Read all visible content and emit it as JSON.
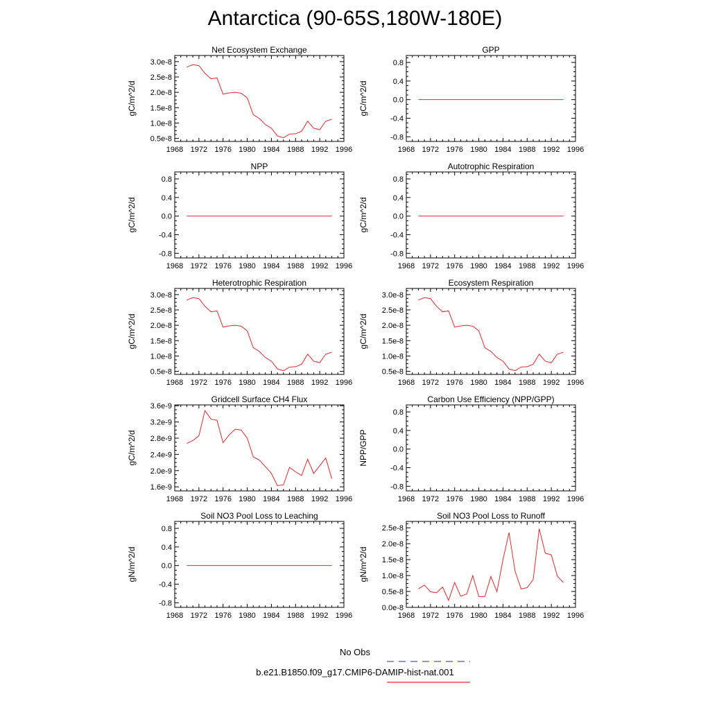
{
  "page": {
    "title": "Antarctica (90-65S,180W-180E)",
    "line_color": "#e8262a",
    "obs_color": "#5050d0"
  },
  "legend": {
    "obs_label": "No Obs",
    "run_label": "b.e21.B1850.f09_g17.CMIP6-DAMIP-hist-nat.001"
  },
  "chart_data": [
    {
      "type": "line",
      "title": "Net Ecosystem Exchange",
      "ylabel": "gC/m^2/d",
      "xlim": [
        1968,
        1996
      ],
      "ylim": [
        4e-09,
        3.2e-08
      ],
      "yticks": [
        5e-09,
        1e-08,
        1.5e-08,
        2e-08,
        2.5e-08,
        3e-08
      ],
      "yticklabels": [
        "0.5e-8",
        "1.0e-8",
        "1.5e-8",
        "2.0e-8",
        "2.5e-8",
        "3.0e-8"
      ],
      "series": [
        {
          "x": [
            1970,
            1971,
            1972,
            1973,
            1974,
            1975,
            1976,
            1977,
            1978,
            1979,
            1980,
            1981,
            1982,
            1983,
            1984,
            1985,
            1986,
            1987,
            1988,
            1989,
            1990,
            1991,
            1992,
            1993,
            1994
          ],
          "values": [
            2.82e-08,
            2.9e-08,
            2.87e-08,
            2.62e-08,
            2.44e-08,
            2.47e-08,
            1.94e-08,
            1.98e-08,
            2e-08,
            1.97e-08,
            1.82e-08,
            1.27e-08,
            1.15e-08,
            9.5e-09,
            8.3e-09,
            5.8e-09,
            5.2e-09,
            6.4e-09,
            6.5e-09,
            7.3e-09,
            1.06e-08,
            8.3e-09,
            7.8e-09,
            1.06e-08,
            1.12e-08
          ]
        }
      ]
    },
    {
      "type": "line",
      "title": "GPP",
      "ylabel": "gC/m^2/d",
      "xlim": [
        1968,
        1996
      ],
      "ylim": [
        -0.9,
        0.95
      ],
      "yticks": [
        -0.8,
        -0.4,
        0.0,
        0.4,
        0.8
      ],
      "yticklabels": [
        "-0.8",
        "-0.4",
        "0.0",
        "0.4",
        "0.8"
      ],
      "series": [
        {
          "x": [
            1970,
            1994
          ],
          "values": [
            0,
            0
          ]
        }
      ]
    },
    {
      "type": "line",
      "title": "NPP",
      "ylabel": "gC/m^2/d",
      "xlim": [
        1968,
        1996
      ],
      "ylim": [
        -0.9,
        0.95
      ],
      "yticks": [
        -0.8,
        -0.4,
        0.0,
        0.4,
        0.8
      ],
      "yticklabels": [
        "-0.8",
        "-0.4",
        "0.0",
        "0.4",
        "0.8"
      ],
      "series": [
        {
          "x": [
            1970,
            1994
          ],
          "values": [
            0,
            0
          ]
        }
      ]
    },
    {
      "type": "line",
      "title": "Autotrophic Respiration",
      "ylabel": "gC/m^2/d",
      "xlim": [
        1968,
        1996
      ],
      "ylim": [
        -0.9,
        0.95
      ],
      "yticks": [
        -0.8,
        -0.4,
        0.0,
        0.4,
        0.8
      ],
      "yticklabels": [
        "-0.8",
        "-0.4",
        "0.0",
        "0.4",
        "0.8"
      ],
      "series": [
        {
          "x": [
            1970,
            1994
          ],
          "values": [
            0,
            0
          ]
        }
      ]
    },
    {
      "type": "line",
      "title": "Heterotrophic Respiration",
      "ylabel": "gC/m^2/d",
      "xlim": [
        1968,
        1996
      ],
      "ylim": [
        4e-09,
        3.2e-08
      ],
      "yticks": [
        5e-09,
        1e-08,
        1.5e-08,
        2e-08,
        2.5e-08,
        3e-08
      ],
      "yticklabels": [
        "0.5e-8",
        "1.0e-8",
        "1.5e-8",
        "2.0e-8",
        "2.5e-8",
        "3.0e-8"
      ],
      "series": [
        {
          "x": [
            1970,
            1971,
            1972,
            1973,
            1974,
            1975,
            1976,
            1977,
            1978,
            1979,
            1980,
            1981,
            1982,
            1983,
            1984,
            1985,
            1986,
            1987,
            1988,
            1989,
            1990,
            1991,
            1992,
            1993,
            1994
          ],
          "values": [
            2.82e-08,
            2.9e-08,
            2.87e-08,
            2.62e-08,
            2.44e-08,
            2.47e-08,
            1.94e-08,
            1.98e-08,
            2e-08,
            1.97e-08,
            1.82e-08,
            1.27e-08,
            1.15e-08,
            9.5e-09,
            8.3e-09,
            5.8e-09,
            5.2e-09,
            6.4e-09,
            6.5e-09,
            7.3e-09,
            1.06e-08,
            8.3e-09,
            7.8e-09,
            1.06e-08,
            1.12e-08
          ]
        }
      ]
    },
    {
      "type": "line",
      "title": "Ecosystem Respiration",
      "ylabel": "gC/m^2/d",
      "xlim": [
        1968,
        1996
      ],
      "ylim": [
        4e-09,
        3.2e-08
      ],
      "yticks": [
        5e-09,
        1e-08,
        1.5e-08,
        2e-08,
        2.5e-08,
        3e-08
      ],
      "yticklabels": [
        "0.5e-8",
        "1.0e-8",
        "1.5e-8",
        "2.0e-8",
        "2.5e-8",
        "3.0e-8"
      ],
      "series": [
        {
          "x": [
            1970,
            1971,
            1972,
            1973,
            1974,
            1975,
            1976,
            1977,
            1978,
            1979,
            1980,
            1981,
            1982,
            1983,
            1984,
            1985,
            1986,
            1987,
            1988,
            1989,
            1990,
            1991,
            1992,
            1993,
            1994
          ],
          "values": [
            2.82e-08,
            2.9e-08,
            2.87e-08,
            2.62e-08,
            2.44e-08,
            2.47e-08,
            1.94e-08,
            1.98e-08,
            2e-08,
            1.97e-08,
            1.82e-08,
            1.27e-08,
            1.15e-08,
            9.5e-09,
            8.3e-09,
            5.8e-09,
            5.2e-09,
            6.4e-09,
            6.5e-09,
            7.3e-09,
            1.06e-08,
            8.3e-09,
            7.8e-09,
            1.06e-08,
            1.12e-08
          ]
        }
      ]
    },
    {
      "type": "line",
      "title": "Gridcell Surface CH4 Flux",
      "ylabel": "gC/m^2/d",
      "xlim": [
        1968,
        1996
      ],
      "ylim": [
        1.5e-09,
        3.62e-09
      ],
      "yticks": [
        1.6e-09,
        2e-09,
        2.4e-09,
        2.8e-09,
        3.2e-09,
        3.6e-09
      ],
      "yticklabels": [
        "1.6e-9",
        "2.0e-9",
        "2.4e-9",
        "2.8e-9",
        "3.2e-9",
        "3.6e-9"
      ],
      "series": [
        {
          "x": [
            1970,
            1971,
            1972,
            1973,
            1974,
            1975,
            1976,
            1977,
            1978,
            1979,
            1980,
            1981,
            1982,
            1983,
            1984,
            1985,
            1986,
            1987,
            1988,
            1989,
            1990,
            1991,
            1992,
            1993,
            1994
          ],
          "values": [
            2.67e-09,
            2.74e-09,
            2.86e-09,
            3.48e-09,
            3.27e-09,
            3.24e-09,
            2.69e-09,
            2.88e-09,
            3.02e-09,
            3e-09,
            2.8e-09,
            2.34e-09,
            2.26e-09,
            2.1e-09,
            1.93e-09,
            1.63e-09,
            1.65e-09,
            2.08e-09,
            1.97e-09,
            1.88e-09,
            2.28e-09,
            1.93e-09,
            2.12e-09,
            2.31e-09,
            1.8e-09
          ]
        }
      ]
    },
    {
      "type": "line",
      "title": "Carbon Use Efficiency (NPP/GPP)",
      "ylabel": "NPP/GPP",
      "xlim": [
        1968,
        1996
      ],
      "ylim": [
        -0.9,
        0.95
      ],
      "yticks": [
        -0.8,
        -0.4,
        0.0,
        0.4,
        0.8
      ],
      "yticklabels": [
        "-0.8",
        "-0.4",
        "0.0",
        "0.4",
        "0.8"
      ],
      "series": []
    },
    {
      "type": "line",
      "title": "Soil NO3 Pool Loss to Leaching",
      "ylabel": "gN/m^2/d",
      "xlim": [
        1968,
        1996
      ],
      "ylim": [
        -0.9,
        0.95
      ],
      "yticks": [
        -0.8,
        -0.4,
        0.0,
        0.4,
        0.8
      ],
      "yticklabels": [
        "-0.8",
        "-0.4",
        "0.0",
        "0.4",
        "0.8"
      ],
      "series": [
        {
          "x": [
            1970,
            1994
          ],
          "values": [
            0,
            0
          ]
        }
      ]
    },
    {
      "type": "line",
      "title": "Soil NO3 Pool Loss to Runoff",
      "ylabel": "gN/m^2/d",
      "xlim": [
        1968,
        1996
      ],
      "ylim": [
        0,
        2.7e-08
      ],
      "yticks": [
        0.0,
        5e-09,
        1e-08,
        1.5e-08,
        2e-08,
        2.5e-08
      ],
      "yticklabels": [
        "0.0e-8",
        "0.5e-8",
        "1.0e-8",
        "1.5e-8",
        "2.0e-8",
        "2.5e-8"
      ],
      "series": [
        {
          "x": [
            1970,
            1971,
            1972,
            1973,
            1974,
            1975,
            1976,
            1977,
            1978,
            1979,
            1980,
            1981,
            1982,
            1983,
            1984,
            1985,
            1986,
            1987,
            1988,
            1989,
            1990,
            1991,
            1992,
            1993,
            1994
          ],
          "values": [
            5.8e-09,
            7e-09,
            4.9e-09,
            4.6e-09,
            6.4e-09,
            2.2e-09,
            7.8e-09,
            3.5e-09,
            4.2e-09,
            1e-08,
            3.4e-09,
            3.4e-09,
            9.7e-09,
            4.9e-09,
            1.5e-08,
            2.35e-08,
            1.14e-08,
            5.8e-09,
            6.2e-09,
            8.7e-09,
            2.47e-08,
            1.7e-08,
            1.65e-08,
            9.8e-09,
            7.8e-09
          ]
        }
      ]
    }
  ]
}
